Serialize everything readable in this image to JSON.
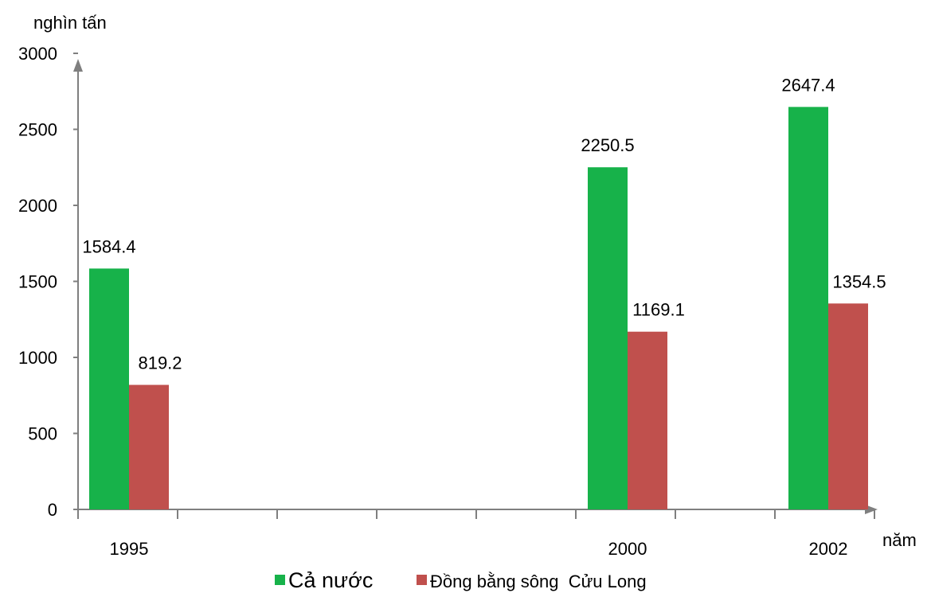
{
  "chart_data": {
    "type": "bar",
    "y_unit": "nghìn tấn",
    "x_unit": "năm",
    "categories": [
      "1995",
      "2000",
      "2002"
    ],
    "series": [
      {
        "name": "Cả nước",
        "values": [
          1584.4,
          2250.5,
          2647.4
        ],
        "color": "#17b24a"
      },
      {
        "name": "Đồng bằng sông  Cửu Long",
        "values": [
          819.2,
          1169.1,
          1354.5
        ],
        "color": "#c0504d"
      }
    ],
    "data_labels": [
      [
        "1584.4",
        "2250.5",
        "2647.4"
      ],
      [
        "819.2",
        "1169.1",
        "1354.5"
      ]
    ],
    "ylim": [
      0,
      3000
    ],
    "yticks": [
      0,
      500,
      1000,
      1500,
      2000,
      2500,
      3000
    ],
    "grid": false,
    "legend_position": "bottom"
  }
}
